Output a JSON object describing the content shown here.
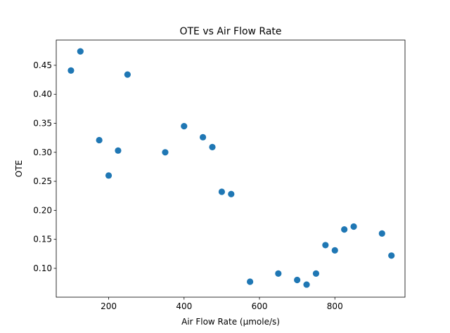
{
  "chart_data": {
    "type": "scatter",
    "title": "OTE vs Air Flow Rate",
    "xlabel": "Air Flow Rate (µmole/s)",
    "ylabel": "OTE",
    "xlim": [
      61,
      986
    ],
    "ylim": [
      0.0503,
      0.4935
    ],
    "x_ticks": [
      200,
      400,
      600,
      800
    ],
    "x_tick_labels": [
      "200",
      "400",
      "600",
      "800"
    ],
    "y_ticks": [
      0.1,
      0.15,
      0.2,
      0.25,
      0.3,
      0.35,
      0.4,
      0.45
    ],
    "y_tick_labels": [
      "0.10",
      "0.15",
      "0.20",
      "0.25",
      "0.30",
      "0.35",
      "0.40",
      "0.45"
    ],
    "grid": false,
    "marker_color": "#1f77b4",
    "points": [
      {
        "x": 100,
        "y": 0.441
      },
      {
        "x": 125,
        "y": 0.474
      },
      {
        "x": 175,
        "y": 0.321
      },
      {
        "x": 200,
        "y": 0.26
      },
      {
        "x": 225,
        "y": 0.303
      },
      {
        "x": 250,
        "y": 0.434
      },
      {
        "x": 350,
        "y": 0.3
      },
      {
        "x": 400,
        "y": 0.345
      },
      {
        "x": 450,
        "y": 0.326
      },
      {
        "x": 475,
        "y": 0.309
      },
      {
        "x": 500,
        "y": 0.232
      },
      {
        "x": 525,
        "y": 0.228
      },
      {
        "x": 575,
        "y": 0.077
      },
      {
        "x": 650,
        "y": 0.091
      },
      {
        "x": 700,
        "y": 0.08
      },
      {
        "x": 725,
        "y": 0.072
      },
      {
        "x": 750,
        "y": 0.091
      },
      {
        "x": 775,
        "y": 0.14
      },
      {
        "x": 800,
        "y": 0.131
      },
      {
        "x": 825,
        "y": 0.167
      },
      {
        "x": 850,
        "y": 0.172
      },
      {
        "x": 925,
        "y": 0.16
      },
      {
        "x": 950,
        "y": 0.122
      }
    ]
  }
}
